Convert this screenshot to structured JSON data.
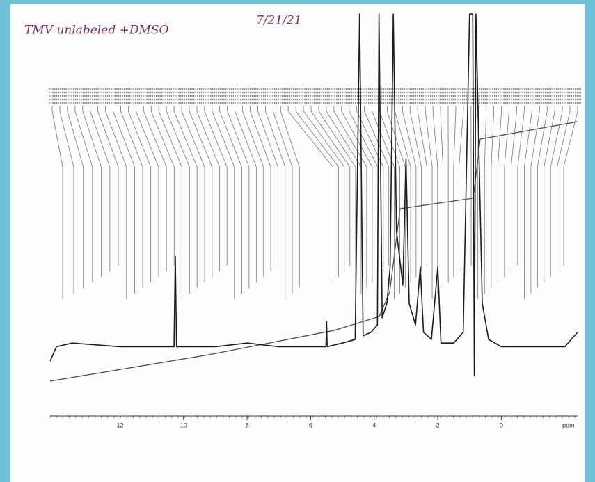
{
  "chart_data": {
    "type": "line",
    "title": "TMV unlabeled +DMSO",
    "subtitle": "7/21/21",
    "x_label": "ppm",
    "x": [
      14.2,
      14.0,
      13.5,
      12,
      11,
      10.3,
      10.26,
      10.22,
      9,
      8,
      7,
      6,
      5.52,
      5.5,
      5.48,
      5,
      4.6,
      4.46,
      4.35,
      4.1,
      3.9,
      3.85,
      3.75,
      3.6,
      3.5,
      3.4,
      3.3,
      3.1,
      3.0,
      2.9,
      2.7,
      2.55,
      2.45,
      2.2,
      2.0,
      1.9,
      1.5,
      1.2,
      1.0,
      0.9,
      0.85,
      0.8,
      0.6,
      0.4,
      0,
      -1,
      -2,
      -2.4
    ],
    "series": [
      {
        "color": "#1c1c1c",
        "values": [
          4,
          8,
          9,
          8,
          8,
          8,
          33,
          8,
          8,
          9,
          8,
          8,
          8,
          15,
          8,
          9,
          10,
          100,
          11,
          12,
          14,
          100,
          16,
          20,
          30,
          100,
          40,
          25,
          60,
          20,
          14,
          30,
          12,
          10,
          30,
          9,
          9,
          12,
          100,
          100,
          0,
          100,
          20,
          10,
          8,
          8,
          8,
          12
        ]
      }
    ],
    "xlim": [
      14.2,
      -2.4
    ],
    "ylim": [
      0,
      100
    ],
    "xticks": [
      12,
      10,
      8,
      6,
      4,
      2,
      0
    ]
  }
}
